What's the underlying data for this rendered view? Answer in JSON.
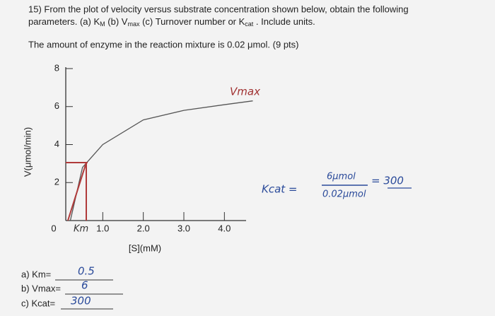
{
  "question": {
    "line1": "15) From the plot of velocity versus substrate concentration shown below, obtain the following",
    "line2": [
      "parameters. (a) K",
      "M",
      " (b) V",
      "max",
      " (c) Turnover number or K",
      "cat",
      " .  Include units."
    ],
    "line3": "The amount of enzyme in the reaction mixture is 0.02 μmol. (9 pts)"
  },
  "chart_data": {
    "type": "line",
    "x_label": "[S](mM)",
    "y_label": "V(μmol/min)",
    "x": [
      0.2,
      0.5,
      1,
      2,
      3,
      4,
      4.7
    ],
    "series": [
      {
        "name": "Vmax",
        "color": "#555555",
        "values": [
          0,
          2.8,
          4,
          5.3,
          5.8,
          6.1,
          6.3
        ]
      }
    ],
    "xlim": [
      0,
      4.5
    ],
    "ylim": [
      0,
      8
    ],
    "xticks": [
      0,
      {
        "value": 1,
        "label": "1.0"
      },
      {
        "value": 2,
        "label": "2.0"
      },
      {
        "value": 3,
        "label": "3.0"
      },
      {
        "value": 4,
        "label": "4.0"
      }
    ],
    "yticks": [
      2,
      4,
      6,
      8
    ],
    "km_label": "Km"
  },
  "handwriting": {
    "kcat_lhs": "Kcat =",
    "numerator": "6μmol",
    "denominator": "0.02μmol",
    "result": "= 300"
  },
  "answers": [
    {
      "label": "a) Km=",
      "value": "0.5"
    },
    {
      "label": "b) Vmax=",
      "value": "6"
    },
    {
      "label": "c) Kcat=",
      "value": "300"
    }
  ]
}
